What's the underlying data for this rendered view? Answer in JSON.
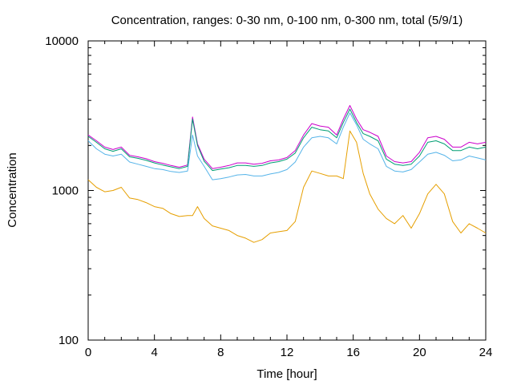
{
  "chart_data": {
    "type": "line",
    "title": "Concentration, ranges: 0-30 nm, 0-100 nm, 0-300 nm, total (5/9/1)",
    "xlabel": "Time [hour]",
    "ylabel": "Concentration",
    "xlim": [
      0,
      24
    ],
    "ylim": [
      100,
      10000
    ],
    "yscale": "log",
    "grid": false,
    "legend": "none",
    "x_ticks": [
      0,
      4,
      8,
      12,
      16,
      20,
      24
    ],
    "y_ticks": [
      100,
      1000,
      10000
    ],
    "x": [
      0,
      0.5,
      1,
      1.5,
      2,
      2.5,
      3,
      3.5,
      4,
      4.5,
      5,
      5.5,
      6,
      6.3,
      6.6,
      7,
      7.5,
      8,
      8.5,
      9,
      9.5,
      10,
      10.5,
      11,
      11.5,
      12,
      12.5,
      13,
      13.5,
      14,
      14.5,
      15,
      15.4,
      15.8,
      16.2,
      16.6,
      17,
      17.5,
      18,
      18.5,
      19,
      19.5,
      20,
      20.5,
      21,
      21.5,
      22,
      22.5,
      23,
      23.5,
      24
    ],
    "series": [
      {
        "color": "#cc00cc",
        "values": [
          2350,
          2150,
          1950,
          1880,
          1950,
          1720,
          1680,
          1630,
          1560,
          1520,
          1470,
          1430,
          1480,
          3100,
          2050,
          1620,
          1400,
          1430,
          1470,
          1530,
          1530,
          1500,
          1520,
          1580,
          1600,
          1660,
          1850,
          2350,
          2800,
          2700,
          2650,
          2350,
          3000,
          3700,
          3000,
          2550,
          2450,
          2300,
          1700,
          1560,
          1530,
          1560,
          1800,
          2250,
          2300,
          2200,
          1950,
          1950,
          2100,
          2050,
          2100
        ]
      },
      {
        "color": "#009e73",
        "values": [
          2300,
          2100,
          1900,
          1830,
          1900,
          1680,
          1640,
          1590,
          1530,
          1480,
          1440,
          1400,
          1450,
          3000,
          2000,
          1570,
          1360,
          1390,
          1420,
          1470,
          1470,
          1450,
          1470,
          1530,
          1560,
          1620,
          1780,
          2250,
          2650,
          2550,
          2500,
          2250,
          2850,
          3500,
          2850,
          2400,
          2300,
          2150,
          1620,
          1500,
          1470,
          1500,
          1700,
          2100,
          2150,
          2050,
          1850,
          1850,
          1950,
          1900,
          1950
        ]
      },
      {
        "color": "#56b4e9",
        "values": [
          2150,
          1900,
          1750,
          1700,
          1750,
          1550,
          1500,
          1450,
          1400,
          1380,
          1340,
          1320,
          1350,
          2350,
          1700,
          1450,
          1180,
          1200,
          1230,
          1270,
          1280,
          1250,
          1250,
          1290,
          1320,
          1380,
          1550,
          1950,
          2250,
          2300,
          2250,
          2050,
          2650,
          3300,
          2750,
          2200,
          2050,
          1900,
          1450,
          1350,
          1330,
          1380,
          1550,
          1750,
          1800,
          1720,
          1580,
          1600,
          1700,
          1650,
          1600
        ]
      },
      {
        "color": "#e69f00",
        "values": [
          1180,
          1050,
          980,
          1000,
          1050,
          890,
          870,
          830,
          780,
          760,
          700,
          670,
          680,
          680,
          780,
          650,
          580,
          560,
          540,
          500,
          480,
          450,
          470,
          520,
          530,
          540,
          620,
          1050,
          1350,
          1300,
          1250,
          1250,
          1200,
          2500,
          2100,
          1300,
          950,
          750,
          650,
          600,
          680,
          560,
          700,
          950,
          1100,
          950,
          620,
          520,
          600,
          560,
          520
        ]
      }
    ]
  }
}
